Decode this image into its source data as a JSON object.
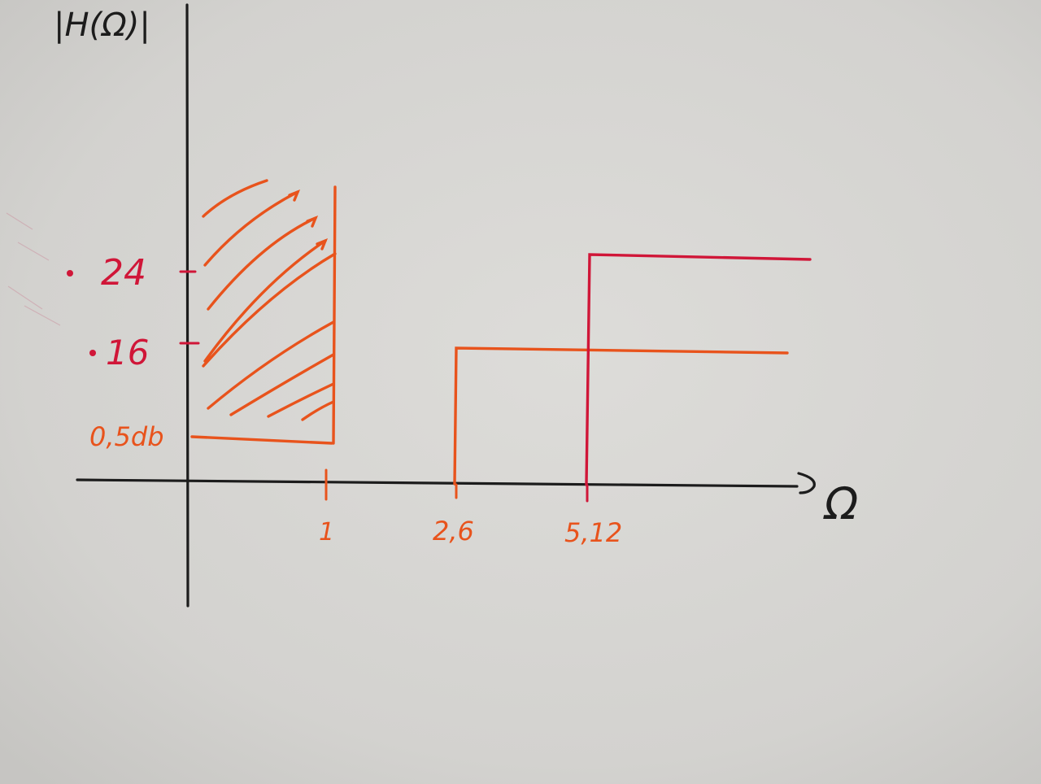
{
  "diagram": {
    "y_axis_label": "|H(Ω)|",
    "x_axis_label": "Ω",
    "y_ticks": [
      {
        "id": "24",
        "label": "24"
      },
      {
        "id": "16",
        "label": "16"
      },
      {
        "id": "05db",
        "label": "0,5db"
      }
    ],
    "x_ticks": [
      {
        "id": "1",
        "label": "1"
      },
      {
        "id": "2_6",
        "label": "2,6"
      },
      {
        "id": "5_12",
        "label": "5,12"
      }
    ]
  },
  "colors": {
    "paper": "#d4d3d0",
    "ink_black": "#1c1c1c",
    "ink_orange": "#e8531c",
    "ink_red": "#d01638"
  }
}
